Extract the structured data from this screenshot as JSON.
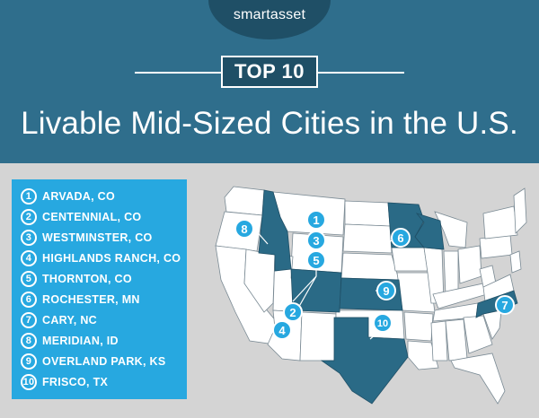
{
  "header": {
    "logo_brand": "smartasset",
    "badge": "TOP 10",
    "title": "Livable Mid-Sized Cities in the U.S."
  },
  "colors": {
    "header_bg": "#2f6e8c",
    "accent_blue": "#27a8e0",
    "dark_teal": "#1f4f66",
    "highlight_state": "#2a6a86",
    "page_bg": "#d4d4d4"
  },
  "rankings": [
    {
      "rank": "1",
      "city": "ARVADA, CO"
    },
    {
      "rank": "2",
      "city": "CENTENNIAL, CO"
    },
    {
      "rank": "3",
      "city": "WESTMINSTER, CO"
    },
    {
      "rank": "4",
      "city": "HIGHLANDS RANCH, CO"
    },
    {
      "rank": "5",
      "city": "THORNTON, CO"
    },
    {
      "rank": "6",
      "city": "ROCHESTER, MN"
    },
    {
      "rank": "7",
      "city": "CARY, NC"
    },
    {
      "rank": "8",
      "city": "MERIDIAN, ID"
    },
    {
      "rank": "9",
      "city": "OVERLAND PARK, KS"
    },
    {
      "rank": "10",
      "city": "FRISCO, TX"
    }
  ],
  "map_markers": [
    "1",
    "2",
    "3",
    "4",
    "5",
    "6",
    "7",
    "8",
    "9",
    "10"
  ]
}
